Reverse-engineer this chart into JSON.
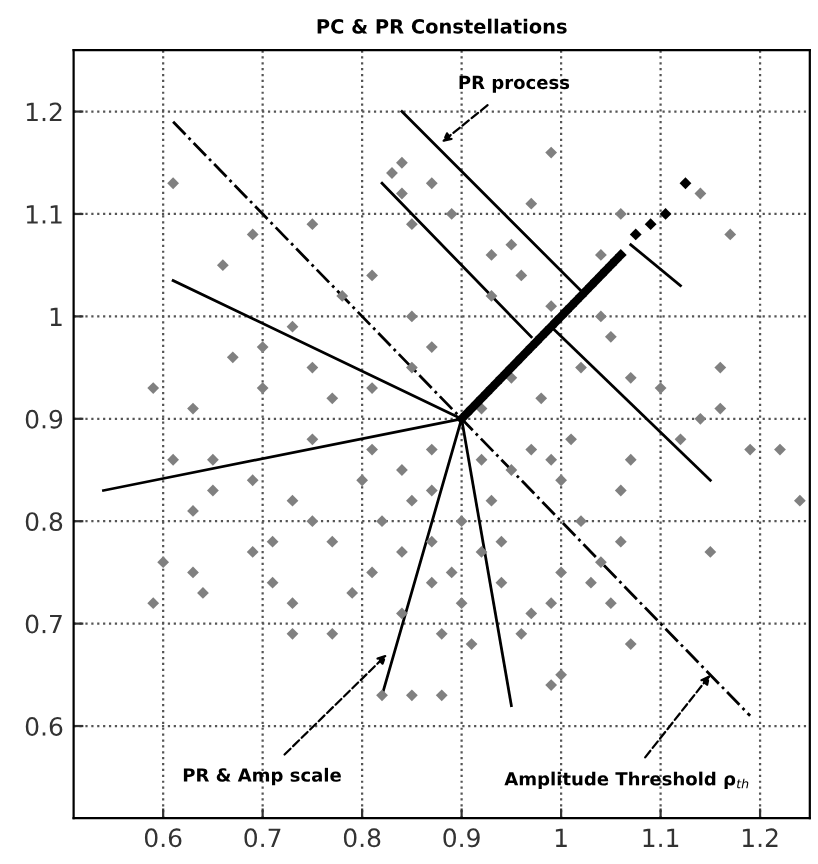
{
  "chart_data": {
    "type": "scatter",
    "title": "PC & PR Constellations",
    "xlim": [
      0.51,
      1.25
    ],
    "ylim": [
      0.51,
      1.26
    ],
    "xticks": [
      0.6,
      0.7,
      0.8,
      0.9,
      1,
      1.1,
      1.2
    ],
    "yticks": [
      0.6,
      0.7,
      0.8,
      0.9,
      1,
      1.1,
      1.2
    ],
    "grid": true,
    "marker": "diamond",
    "legend": false,
    "series": [
      {
        "color": "#808080",
        "x": [
          0.61,
          0.84,
          0.83,
          0.87,
          0.84,
          0.97,
          0.99,
          1.14,
          0.66,
          0.69,
          0.75,
          0.85,
          0.89,
          0.93,
          0.95,
          1.04,
          1.06,
          1.17,
          0.73,
          0.78,
          0.81,
          0.85,
          0.87,
          0.93,
          0.96,
          0.99,
          1.04,
          1.05,
          0.67,
          0.7,
          0.59,
          0.63,
          0.7,
          0.75,
          0.77,
          0.81,
          0.85,
          0.95,
          0.98,
          1.02,
          1.07,
          1.16,
          1.16,
          1.1,
          0.92,
          1.14,
          0.61,
          0.65,
          0.63,
          0.65,
          0.69,
          0.73,
          0.75,
          0.71,
          0.77,
          0.8,
          0.82,
          0.85,
          0.84,
          0.87,
          0.9,
          0.93,
          0.95,
          0.99,
          1.0,
          1.02,
          1.06,
          1.06,
          1.04,
          1.07,
          1.12,
          1.19,
          1.22,
          1.24,
          1.15,
          0.6,
          0.63,
          0.59,
          0.64,
          0.69,
          0.71,
          0.73,
          0.73,
          0.77,
          0.79,
          0.81,
          0.84,
          0.87,
          0.89,
          0.88,
          0.9,
          0.91,
          0.94,
          0.97,
          0.96,
          0.99,
          1.0,
          1.03,
          1.05,
          1.07,
          0.99,
          1.0,
          0.85,
          0.88,
          0.82,
          0.87,
          0.92,
          0.81,
          0.75,
          0.84,
          0.97,
          1.01,
          0.92,
          0.94,
          0.87
        ],
        "values": [
          1.13,
          1.15,
          1.14,
          1.13,
          1.12,
          1.11,
          1.16,
          1.12,
          1.05,
          1.08,
          1.09,
          1.09,
          1.1,
          1.06,
          1.07,
          1.06,
          1.1,
          1.08,
          0.99,
          1.02,
          1.04,
          1.0,
          0.97,
          1.02,
          1.04,
          1.01,
          1.0,
          0.98,
          0.96,
          0.97,
          0.93,
          0.91,
          0.93,
          0.95,
          0.92,
          0.93,
          0.95,
          0.94,
          0.92,
          0.95,
          0.94,
          0.95,
          0.91,
          0.93,
          0.91,
          0.9,
          0.86,
          0.86,
          0.81,
          0.83,
          0.84,
          0.82,
          0.8,
          0.78,
          0.78,
          0.84,
          0.8,
          0.82,
          0.77,
          0.78,
          0.8,
          0.82,
          0.85,
          0.86,
          0.84,
          0.8,
          0.83,
          0.78,
          0.76,
          0.86,
          0.88,
          0.87,
          0.87,
          0.82,
          0.77,
          0.76,
          0.75,
          0.72,
          0.73,
          0.77,
          0.74,
          0.72,
          0.69,
          0.69,
          0.73,
          0.75,
          0.71,
          0.74,
          0.75,
          0.69,
          0.72,
          0.68,
          0.74,
          0.71,
          0.69,
          0.72,
          0.75,
          0.74,
          0.72,
          0.68,
          0.64,
          0.65,
          0.63,
          0.63,
          0.63,
          0.87,
          0.86,
          0.87,
          0.88,
          0.85,
          0.87,
          0.88,
          0.77,
          0.78,
          0.83
        ]
      },
      {
        "color": "#000000",
        "x": [
          0.9,
          0.905,
          0.91,
          0.915,
          0.92,
          0.925,
          0.93,
          0.935,
          0.94,
          0.945,
          0.95,
          0.955,
          0.96,
          0.965,
          0.97,
          0.975,
          0.98,
          0.985,
          0.99,
          0.995,
          1.0,
          1.005,
          1.01,
          1.015,
          1.02,
          1.025,
          1.03,
          1.035,
          1.04,
          1.045,
          1.05,
          1.055,
          1.06,
          1.075,
          1.09,
          1.105,
          1.125
        ],
        "values": [
          0.9,
          0.905,
          0.91,
          0.915,
          0.92,
          0.925,
          0.93,
          0.935,
          0.94,
          0.945,
          0.95,
          0.955,
          0.96,
          0.965,
          0.97,
          0.975,
          0.98,
          0.985,
          0.99,
          0.995,
          1.0,
          1.005,
          1.01,
          1.015,
          1.02,
          1.025,
          1.03,
          1.035,
          1.04,
          1.045,
          1.05,
          1.055,
          1.06,
          1.08,
          1.09,
          1.1,
          1.13
        ]
      },
      {
        "type": "line",
        "marker": "none",
        "color": "#000000",
        "x": [
          0.61,
          0.9
        ],
        "values": [
          1.035,
          0.9
        ]
      },
      {
        "type": "line",
        "marker": "none",
        "color": "#000000",
        "x": [
          0.54,
          0.9
        ],
        "values": [
          0.83,
          0.9
        ]
      },
      {
        "type": "line",
        "marker": "none",
        "color": "#000000",
        "x": [
          0.82,
          0.9
        ],
        "values": [
          0.63,
          0.9
        ]
      },
      {
        "type": "line",
        "marker": "none",
        "color": "#000000",
        "x": [
          0.95,
          0.9
        ],
        "values": [
          0.62,
          0.9
        ]
      },
      {
        "type": "line",
        "marker": "none",
        "color": "#000000",
        "x": [
          0.82,
          0.97
        ],
        "values": [
          1.13,
          0.98
        ]
      },
      {
        "type": "line",
        "marker": "none",
        "color": "#000000",
        "x": [
          0.84,
          1.02
        ],
        "values": [
          1.2,
          1.025
        ]
      },
      {
        "type": "line",
        "marker": "none",
        "color": "#000000",
        "x": [
          1.15,
          0.99
        ],
        "values": [
          0.84,
          0.99
        ]
      },
      {
        "type": "line",
        "marker": "none",
        "color": "#000000",
        "x": [
          1.12,
          1.07
        ],
        "values": [
          1.03,
          1.07
        ]
      },
      {
        "type": "line",
        "marker": "none",
        "color": "#000000",
        "line_style": "dashdot",
        "x": [
          0.61,
          1.19
        ],
        "values": [
          1.19,
          0.61
        ]
      }
    ],
    "annotations": [
      {
        "text": "PR process",
        "x": 0.88,
        "y": 1.17
      },
      {
        "text": "PR & Amp scale",
        "x": 0.825,
        "y": 0.67
      },
      {
        "text": "Amplitude Threshold ρ$_{th}$",
        "x": 1.15,
        "y": 0.65
      }
    ]
  }
}
